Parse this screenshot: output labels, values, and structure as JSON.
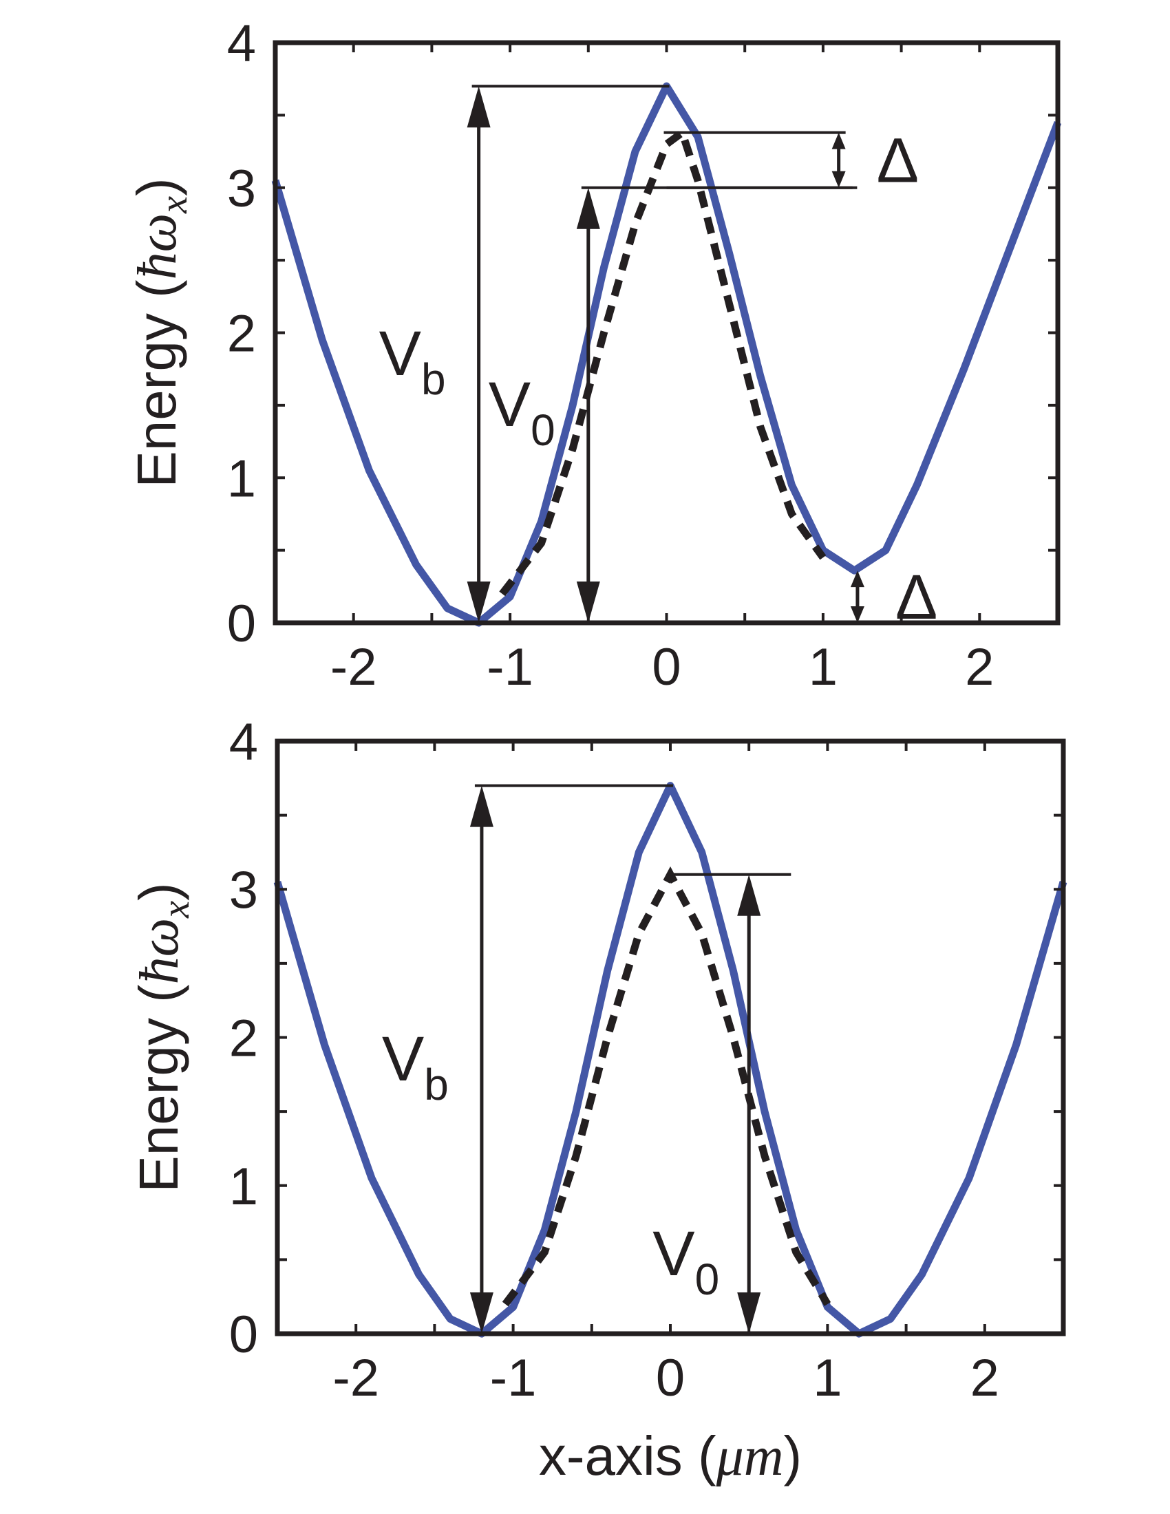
{
  "chart_data": [
    {
      "type": "line",
      "panel": "top",
      "xlabel": "",
      "ylabel_prefix": "Energy (",
      "ylabel_math": "ħω",
      "ylabel_sub": "x",
      "ylabel_suffix": ")",
      "xlim": [
        -2.5,
        2.5
      ],
      "ylim": [
        0,
        4
      ],
      "xticks": [
        -2,
        -1,
        0,
        1,
        2
      ],
      "yticks": [
        0,
        1,
        2,
        3,
        4
      ],
      "xtick_labels": [
        "-2",
        "-1",
        "0",
        "1",
        "2"
      ],
      "ytick_labels": [
        "0",
        "1",
        "2",
        "3",
        "4"
      ],
      "series": [
        {
          "style": "solid",
          "color": "#4457a6",
          "x": [
            -2.5,
            -2.2,
            -1.9,
            -1.6,
            -1.4,
            -1.2,
            -1.0,
            -0.8,
            -0.6,
            -0.4,
            -0.2,
            0.0,
            0.2,
            0.4,
            0.6,
            0.8,
            1.0,
            1.2,
            1.4,
            1.6,
            1.9,
            2.2,
            2.5
          ],
          "y": [
            3.05,
            1.95,
            1.05,
            0.4,
            0.1,
            0.0,
            0.18,
            0.7,
            1.5,
            2.45,
            3.25,
            3.7,
            3.35,
            2.55,
            1.7,
            0.95,
            0.5,
            0.36,
            0.5,
            0.95,
            1.75,
            2.6,
            3.45
          ]
        },
        {
          "style": "dashed",
          "color": "#231f20",
          "x": [
            -1.05,
            -0.8,
            -0.6,
            -0.4,
            -0.2,
            0.0,
            0.1,
            0.2,
            0.4,
            0.6,
            0.8,
            1.0
          ],
          "y": [
            0.2,
            0.55,
            1.2,
            2.0,
            2.75,
            3.3,
            3.38,
            3.05,
            2.2,
            1.35,
            0.75,
            0.45
          ]
        }
      ],
      "annotations": [
        {
          "label": "V",
          "sub": "b",
          "x": -1.2,
          "y0": 0.0,
          "y1": 3.7,
          "ref_x1": 0.0
        },
        {
          "label": "V",
          "sub": "0",
          "x": -0.5,
          "y0": 0.0,
          "y1": 3.0,
          "ref_x1": 1.2
        },
        {
          "label": "Δ",
          "x": 1.1,
          "y0": 3.0,
          "y1": 3.38,
          "ref_x0": 0.0
        },
        {
          "label": "Δ",
          "x": 1.22,
          "y0": 0.0,
          "y1": 0.36
        }
      ]
    },
    {
      "type": "line",
      "panel": "bottom",
      "xlabel_prefix": "x-axis (",
      "xlabel_math": "μm",
      "xlabel_suffix": ")",
      "ylabel_prefix": "Energy (",
      "ylabel_math": "ħω",
      "ylabel_sub": "x",
      "ylabel_suffix": ")",
      "xlim": [
        -2.5,
        2.5
      ],
      "ylim": [
        0,
        4
      ],
      "xticks": [
        -2,
        -1,
        0,
        1,
        2
      ],
      "yticks": [
        0,
        1,
        2,
        3,
        4
      ],
      "xtick_labels": [
        "-2",
        "-1",
        "0",
        "1",
        "2"
      ],
      "ytick_labels": [
        "0",
        "1",
        "2",
        "3",
        "4"
      ],
      "series": [
        {
          "style": "solid",
          "color": "#4457a6",
          "x": [
            -2.5,
            -2.2,
            -1.9,
            -1.6,
            -1.4,
            -1.2,
            -1.0,
            -0.8,
            -0.6,
            -0.4,
            -0.2,
            0.0,
            0.2,
            0.4,
            0.6,
            0.8,
            1.0,
            1.2,
            1.4,
            1.6,
            1.9,
            2.2,
            2.5
          ],
          "y": [
            3.05,
            1.95,
            1.05,
            0.4,
            0.1,
            0.0,
            0.18,
            0.7,
            1.5,
            2.45,
            3.25,
            3.7,
            3.25,
            2.45,
            1.5,
            0.7,
            0.18,
            0.0,
            0.1,
            0.4,
            1.05,
            1.95,
            3.05
          ]
        },
        {
          "style": "dashed",
          "color": "#231f20",
          "x": [
            -1.05,
            -0.8,
            -0.6,
            -0.4,
            -0.2,
            0.0,
            0.2,
            0.4,
            0.6,
            0.8,
            1.0
          ],
          "y": [
            0.2,
            0.55,
            1.2,
            2.0,
            2.7,
            3.1,
            2.7,
            2.0,
            1.2,
            0.55,
            0.2
          ]
        }
      ],
      "annotations": [
        {
          "label": "V",
          "sub": "b",
          "x": -1.2,
          "y0": 0.0,
          "y1": 3.7,
          "ref_x1": 0.0
        },
        {
          "label": "V",
          "sub": "0",
          "x": 0.5,
          "y0": 0.0,
          "y1": 3.1,
          "ref_x0": 0.0,
          "ref_x1": 0.75
        }
      ]
    }
  ]
}
